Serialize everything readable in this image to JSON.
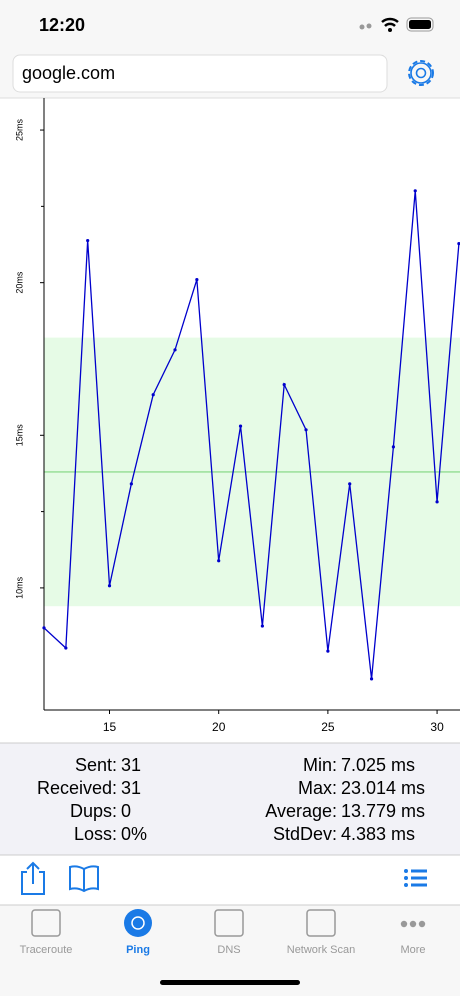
{
  "status_bar": {
    "time": "12:20"
  },
  "search": {
    "text": "google.com"
  },
  "chart": {
    "type": "line",
    "x": [
      12,
      13,
      14,
      15,
      16,
      17,
      18,
      19,
      20,
      21,
      22,
      23,
      24,
      25,
      26,
      27,
      28,
      29,
      30,
      31
    ],
    "values": [
      8.69,
      8.03,
      21.38,
      10.07,
      13.41,
      16.33,
      17.8,
      20.1,
      10.89,
      15.3,
      8.75,
      16.66,
      15.18,
      7.93,
      13.41,
      7.02,
      14.62,
      23.01,
      12.82,
      21.28
    ],
    "color": "#0000cc",
    "xlim": [
      12,
      31.05
    ],
    "ylim": [
      6,
      26.05
    ],
    "xticks": [
      15,
      20,
      25,
      30
    ],
    "yticks": [
      {
        "value": 10,
        "label": "10ms"
      },
      {
        "value": 15,
        "label": "15ms"
      },
      {
        "value": 20,
        "label": "20ms"
      },
      {
        "value": 25,
        "label": "25ms"
      }
    ],
    "yminor": [
      12.5,
      22.5
    ],
    "mean_line": 13.8,
    "band": [
      9.4,
      18.2
    ]
  },
  "stats": {
    "left": [
      {
        "label": "Sent:",
        "value": "31"
      },
      {
        "label": "Received:",
        "value": "31"
      },
      {
        "label": "Dups:",
        "value": "0"
      },
      {
        "label": "Loss:",
        "value": "0%"
      }
    ],
    "right": [
      {
        "label": "Min:",
        "value": "7.025 ms"
      },
      {
        "label": "Max:",
        "value": "23.014 ms"
      },
      {
        "label": "Average:",
        "value": "13.779 ms"
      },
      {
        "label": "StdDev:",
        "value": "4.383 ms"
      }
    ]
  },
  "tabs": [
    {
      "label": "Traceroute"
    },
    {
      "label": "Ping"
    },
    {
      "label": "DNS"
    },
    {
      "label": "Network Scan"
    },
    {
      "label": "More"
    }
  ],
  "active_tab": 1
}
